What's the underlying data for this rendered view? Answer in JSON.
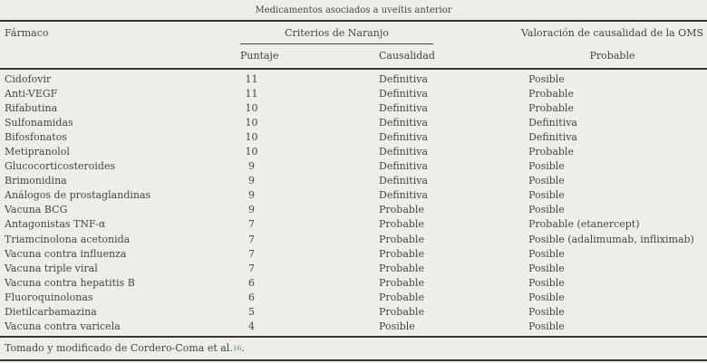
{
  "table": {
    "title": "Medicamentos asociados a uveítis anterior",
    "header": {
      "farmaco": "Fármaco",
      "naranjo_group": "Criterios de Naranjo",
      "puntaje": "Puntaje",
      "causalidad": "Causalidad",
      "oms_group": "Valoración de causalidad de la OMS",
      "oms_sub": "Probable"
    },
    "rows": [
      {
        "farmaco": "Cidofovir",
        "puntaje": "11",
        "causalidad": "Definitiva",
        "oms": "Posible"
      },
      {
        "farmaco": "Anti-VEGF",
        "puntaje": "11",
        "causalidad": "Definitiva",
        "oms": "Probable"
      },
      {
        "farmaco": "Rifabutina",
        "puntaje": "10",
        "causalidad": "Definitiva",
        "oms": "Probable"
      },
      {
        "farmaco": "Sulfonamidas",
        "puntaje": "10",
        "causalidad": "Definitiva",
        "oms": "Definitiva"
      },
      {
        "farmaco": "Bifosfonatos",
        "puntaje": "10",
        "causalidad": "Definitiva",
        "oms": "Definitiva"
      },
      {
        "farmaco": "Metipranolol",
        "puntaje": "10",
        "causalidad": "Definitiva",
        "oms": "Probable"
      },
      {
        "farmaco": "Glucocorticosteroides",
        "puntaje": "9",
        "causalidad": "Definitiva",
        "oms": "Posible"
      },
      {
        "farmaco": "Brimonidina",
        "puntaje": "9",
        "causalidad": "Definitiva",
        "oms": "Posible"
      },
      {
        "farmaco": "Análogos de prostaglandinas",
        "puntaje": "9",
        "causalidad": "Definitiva",
        "oms": "Posible"
      },
      {
        "farmaco": "Vacuna BCG",
        "puntaje": "9",
        "causalidad": "Probable",
        "oms": "Posible"
      },
      {
        "farmaco": "Antagonistas TNF-α",
        "puntaje": "7",
        "causalidad": "Probable",
        "oms": "Probable (etanercept)"
      },
      {
        "farmaco": "Triamcinolona acetonida",
        "puntaje": "7",
        "causalidad": "Probable",
        "oms": "Posible (adalimumab, infliximab)"
      },
      {
        "farmaco": "Vacuna contra influenza",
        "puntaje": "7",
        "causalidad": "Probable",
        "oms": "Posible"
      },
      {
        "farmaco": "Vacuna triple viral",
        "puntaje": "7",
        "causalidad": "Probable",
        "oms": "Posible"
      },
      {
        "farmaco": "Vacuna contra hepatitis B",
        "puntaje": "6",
        "causalidad": "Probable",
        "oms": "Posible"
      },
      {
        "farmaco": "Fluoroquinolonas",
        "puntaje": "6",
        "causalidad": "Probable",
        "oms": "Posible"
      },
      {
        "farmaco": "Dietilcarbamazina",
        "puntaje": "5",
        "causalidad": "Probable",
        "oms": "Posible"
      },
      {
        "farmaco": "Vacuna contra varicela",
        "puntaje": "4",
        "causalidad": "Posible",
        "oms": "Posible"
      }
    ],
    "footnote": {
      "text": "Tomado y modificado de Cordero-Coma et al.",
      "ref": "16",
      "suffix": "."
    },
    "colors": {
      "background": "#eeede7",
      "text": "#45453e",
      "rule": "#35352f",
      "reference_link": "#3787a7"
    }
  }
}
